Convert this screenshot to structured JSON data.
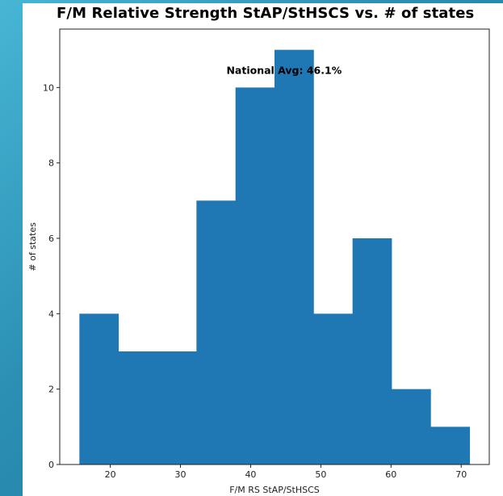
{
  "chart_data": {
    "type": "bar",
    "title": "F/M Relative Strength StAP/StHSCS vs. # of states",
    "xlabel": "F/M RS StAP/StHSCS",
    "ylabel": "# of states",
    "bin_edges": [
      15.6,
      21.16,
      26.72,
      32.28,
      37.84,
      43.4,
      48.96,
      54.52,
      60.08,
      65.64,
      71.2
    ],
    "values": [
      4,
      3,
      3,
      7,
      10,
      11,
      4,
      6,
      2,
      1
    ],
    "xlim": [
      12.8,
      74.0
    ],
    "ylim": [
      0,
      11.55
    ],
    "xticks": [
      20,
      30,
      40,
      50,
      60,
      70
    ],
    "yticks": [
      0,
      2,
      4,
      6,
      8,
      10
    ],
    "bar_color": "#1f77b4",
    "annotation": {
      "text": "National Avg: 46.1%",
      "x": 46.1,
      "y": 10.4
    },
    "grid": false,
    "legend": "none"
  }
}
